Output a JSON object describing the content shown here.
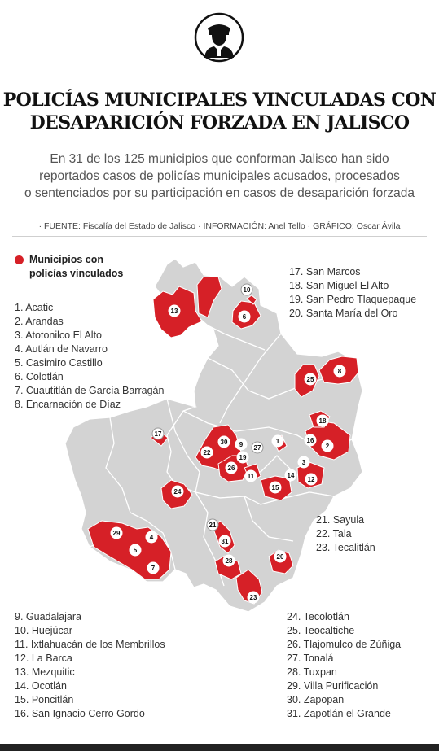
{
  "header": {
    "icon": "police-officer-icon",
    "title_line1": "POLICÍAS MUNICIPALES VINCULADAS CON",
    "title_line2": "DESAPARICIÓN FORZADA EN JALISCO",
    "subtitle_line1": "En 31 de los 125 municipios que conforman Jalisco han sido",
    "subtitle_line2": "reportados casos de policías municipales acusados, procesados",
    "subtitle_line3": "o sentenciados por su participación en casos de desaparición forzada",
    "credits": "· FUENTE: Fiscalía del Estado de Jalisco  · INFORMACIÓN: Anel Tello  · GRÁFICO: Oscar Ávila"
  },
  "legend": {
    "label_line1": "Municipios con",
    "label_line2": "policías vinculados",
    "color": "#d62027"
  },
  "colors": {
    "highlight": "#d62027",
    "base": "#d3d3d3",
    "border": "#ffffff"
  },
  "municipalities": [
    "1.  Acatic",
    "2. Arandas",
    "3. Atotonilco El Alto",
    "4. Autlán de Navarro",
    "5. Casimiro Castillo",
    "6. Colotlán",
    "7. Cuautitlán de  García Barragán",
    "8. Encarnación de Díaz",
    "9. Guadalajara",
    "10. Huejúcar",
    "11. Ixtlahuacán de los Membrillos",
    "12. La Barca",
    "13. Mezquitic",
    "14. Ocotlán",
    "15. Poncitlán",
    "16. San Ignacio Cerro Gordo",
    "17. San Marcos",
    "18. San Miguel El Alto",
    "19. San Pedro Tlaquepaque",
    "20. Santa María del Oro",
    "21. Sayula",
    "22. Tala",
    "23. Tecalitlán",
    "24. Tecolotlán",
    "25. Teocaltiche",
    "26. Tlajomulco de Zúñiga",
    "27. Tonalá",
    "28. Tuxpan",
    "29. Villa Purificación",
    "30. Zapopan",
    "31. Zapotlán el Grande"
  ],
  "map_markers": [
    {
      "n": "1",
      "gray": false
    },
    {
      "n": "2",
      "gray": false
    },
    {
      "n": "3",
      "gray": false
    },
    {
      "n": "4",
      "gray": false
    },
    {
      "n": "5",
      "gray": false
    },
    {
      "n": "6",
      "gray": false
    },
    {
      "n": "7",
      "gray": false
    },
    {
      "n": "8",
      "gray": false
    },
    {
      "n": "9",
      "gray": false
    },
    {
      "n": "10",
      "gray": true
    },
    {
      "n": "11",
      "gray": false
    },
    {
      "n": "12",
      "gray": false
    },
    {
      "n": "13",
      "gray": false
    },
    {
      "n": "14",
      "gray": false
    },
    {
      "n": "15",
      "gray": false
    },
    {
      "n": "16",
      "gray": false
    },
    {
      "n": "17",
      "gray": true
    },
    {
      "n": "18",
      "gray": false
    },
    {
      "n": "19",
      "gray": false
    },
    {
      "n": "20",
      "gray": false
    },
    {
      "n": "21",
      "gray": true
    },
    {
      "n": "22",
      "gray": false
    },
    {
      "n": "23",
      "gray": false
    },
    {
      "n": "24",
      "gray": false
    },
    {
      "n": "25",
      "gray": false
    },
    {
      "n": "26",
      "gray": false
    },
    {
      "n": "27",
      "gray": true
    },
    {
      "n": "28",
      "gray": false
    },
    {
      "n": "29",
      "gray": false
    },
    {
      "n": "30",
      "gray": false
    },
    {
      "n": "31",
      "gray": false
    }
  ]
}
